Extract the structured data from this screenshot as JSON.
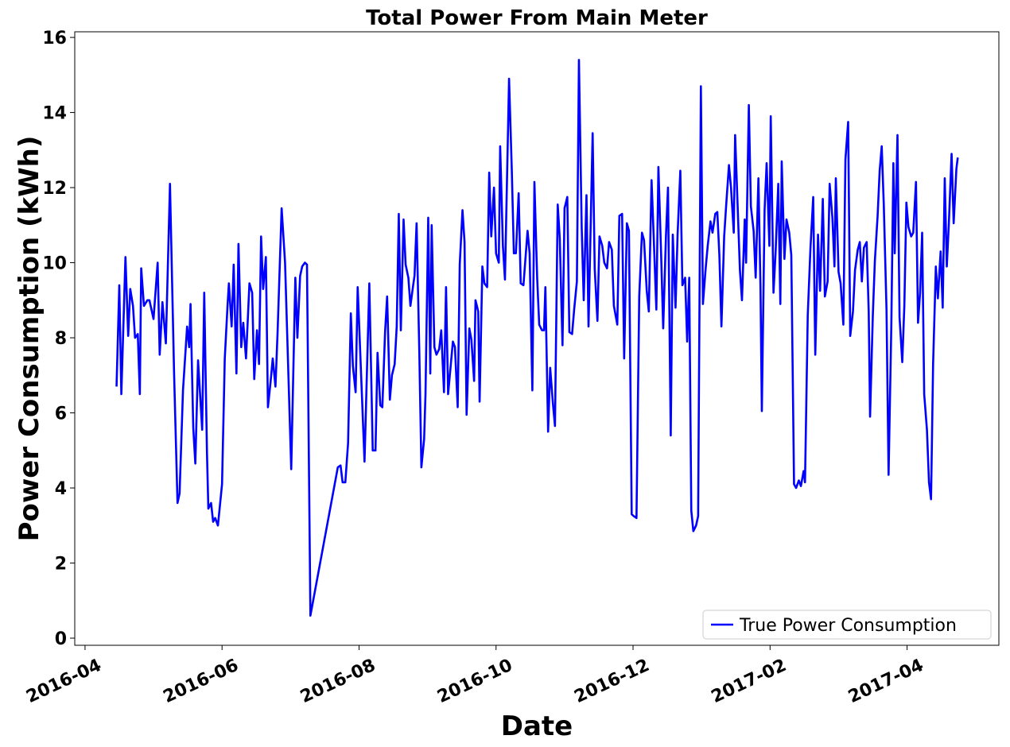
{
  "chart_data": {
    "type": "line",
    "title": "Total Power From Main Meter",
    "x_label": "Date",
    "y_label": "Power Consumption (kWh)",
    "x": [
      0.46,
      0.5,
      0.53,
      0.59,
      0.63,
      0.66,
      0.7,
      0.73,
      0.77,
      0.8,
      0.82,
      0.86,
      0.91,
      0.94,
      1.0,
      1.06,
      1.09,
      1.13,
      1.18,
      1.24,
      1.3,
      1.35,
      1.38,
      1.43,
      1.49,
      1.52,
      1.54,
      1.58,
      1.61,
      1.65,
      1.71,
      1.74,
      1.78,
      1.8,
      1.84,
      1.87,
      1.9,
      1.94,
      2.0,
      2.04,
      2.08,
      2.1,
      2.14,
      2.17,
      2.21,
      2.24,
      2.28,
      2.31,
      2.35,
      2.4,
      2.44,
      2.47,
      2.51,
      2.54,
      2.57,
      2.6,
      2.64,
      2.67,
      2.71,
      2.74,
      2.78,
      2.81,
      2.87,
      2.92,
      3.01,
      3.07,
      3.1,
      3.14,
      3.17,
      3.21,
      3.24,
      3.29,
      3.69,
      3.73,
      3.76,
      3.8,
      3.84,
      3.88,
      3.91,
      3.95,
      3.98,
      4.08,
      4.15,
      4.2,
      4.24,
      4.27,
      4.31,
      4.34,
      4.38,
      4.41,
      4.45,
      4.48,
      4.52,
      4.55,
      4.58,
      4.61,
      4.65,
      4.68,
      4.72,
      4.75,
      4.79,
      4.81,
      4.84,
      4.88,
      4.91,
      4.95,
      4.97,
      5.01,
      5.04,
      5.06,
      5.1,
      5.13,
      5.17,
      5.2,
      5.24,
      5.27,
      5.3,
      5.33,
      5.37,
      5.4,
      5.44,
      5.47,
      5.51,
      5.54,
      5.57,
      5.61,
      5.64,
      5.68,
      5.7,
      5.74,
      5.76,
      5.8,
      5.83,
      5.87,
      5.9,
      5.93,
      5.97,
      6.0,
      6.04,
      6.06,
      6.1,
      6.13,
      6.19,
      6.23,
      6.26,
      6.29,
      6.33,
      6.36,
      6.4,
      6.46,
      6.49,
      6.53,
      6.56,
      6.6,
      6.63,
      6.67,
      6.7,
      6.72,
      6.76,
      6.79,
      6.83,
      6.86,
      6.9,
      6.93,
      6.97,
      7.0,
      7.04,
      7.07,
      7.11,
      7.14,
      7.18,
      7.21,
      7.25,
      7.28,
      7.32,
      7.35,
      7.41,
      7.44,
      7.48,
      7.51,
      7.55,
      7.58,
      7.62,
      7.65,
      7.69,
      7.72,
      7.77,
      7.8,
      7.84,
      7.87,
      7.91,
      7.94,
      7.98,
      8.01,
      8.05,
      8.09,
      8.13,
      8.16,
      8.2,
      8.23,
      8.27,
      8.3,
      8.34,
      8.37,
      8.41,
      8.44,
      8.48,
      8.51,
      8.55,
      8.58,
      8.62,
      8.65,
      8.69,
      8.72,
      8.76,
      8.79,
      8.82,
      8.85,
      8.88,
      8.92,
      8.95,
      8.99,
      9.02,
      9.06,
      9.09,
      9.13,
      9.16,
      9.2,
      9.23,
      9.26,
      9.29,
      9.33,
      9.36,
      9.4,
      9.43,
      9.47,
      9.49,
      9.52,
      9.56,
      9.59,
      9.63,
      9.65,
      9.69,
      9.72,
      9.76,
      9.79,
      9.83,
      9.86,
      9.88,
      9.92,
      9.95,
      9.99,
      10.01,
      10.05,
      10.08,
      10.12,
      10.15,
      10.17,
      10.21,
      10.24,
      10.28,
      10.31,
      10.35,
      10.38,
      10.42,
      10.45,
      10.49,
      10.51,
      10.55,
      10.59,
      10.63,
      10.66,
      10.7,
      10.73,
      10.77,
      10.8,
      10.84,
      10.87,
      10.91,
      10.94,
      10.96,
      11.0,
      11.03,
      11.07,
      11.1,
      11.14,
      11.17,
      11.21,
      11.24,
      11.28,
      11.31,
      11.34,
      11.37,
      11.41,
      11.44,
      11.46,
      11.5,
      11.53,
      11.57,
      11.6,
      11.63,
      11.66,
      11.7,
      11.73,
      11.77,
      11.8,
      11.82,
      11.86,
      11.89,
      11.93,
      11.96,
      11.99,
      12.02,
      12.06,
      12.09,
      12.13,
      12.16,
      12.19,
      12.22,
      12.25,
      12.29,
      12.32,
      12.35,
      12.38,
      12.42,
      12.45,
      12.49,
      12.52,
      12.55,
      12.58,
      12.61,
      12.65,
      12.68,
      12.72,
      12.74
    ],
    "series": [
      {
        "name": "True Power Consumption",
        "color": "#0000ff",
        "values": [
          6.7,
          9.4,
          6.5,
          10.15,
          8.05,
          9.3,
          8.85,
          8.0,
          8.1,
          6.5,
          9.85,
          8.85,
          9.0,
          9.0,
          8.5,
          10.0,
          7.55,
          8.95,
          7.85,
          12.1,
          7.05,
          3.6,
          3.85,
          6.6,
          8.3,
          7.75,
          8.9,
          5.6,
          4.65,
          7.4,
          5.55,
          9.2,
          4.95,
          3.45,
          3.6,
          3.1,
          3.2,
          3.0,
          4.1,
          7.45,
          8.85,
          9.45,
          8.3,
          9.95,
          7.05,
          10.5,
          7.75,
          8.4,
          7.45,
          9.45,
          9.2,
          6.9,
          8.2,
          7.3,
          10.7,
          9.3,
          10.15,
          6.15,
          6.85,
          7.45,
          6.7,
          8.1,
          11.45,
          10.0,
          4.5,
          9.6,
          8.0,
          9.65,
          9.9,
          10.0,
          9.95,
          0.6,
          4.55,
          4.6,
          4.15,
          4.15,
          5.2,
          8.65,
          7.25,
          6.55,
          9.35,
          4.7,
          9.45,
          5.0,
          5.0,
          7.6,
          6.2,
          6.15,
          8.15,
          9.1,
          6.35,
          7.0,
          7.3,
          8.3,
          11.3,
          8.2,
          11.15,
          9.95,
          9.6,
          8.85,
          9.4,
          9.65,
          11.05,
          7.6,
          4.55,
          5.3,
          6.5,
          11.2,
          7.05,
          11.0,
          7.75,
          7.55,
          7.7,
          8.2,
          6.55,
          9.35,
          6.5,
          7.1,
          7.9,
          7.75,
          6.15,
          9.95,
          11.4,
          10.55,
          5.95,
          8.25,
          7.95,
          6.85,
          9.0,
          8.7,
          6.3,
          9.9,
          9.45,
          9.35,
          12.4,
          10.7,
          12.0,
          10.25,
          10.0,
          13.1,
          10.45,
          9.55,
          14.9,
          12.45,
          10.25,
          10.25,
          11.85,
          9.45,
          9.4,
          10.85,
          10.25,
          6.6,
          12.15,
          9.6,
          8.35,
          8.2,
          8.2,
          9.35,
          5.5,
          7.2,
          6.25,
          5.65,
          11.55,
          10.65,
          7.8,
          11.45,
          11.75,
          8.15,
          8.1,
          8.75,
          9.5,
          15.4,
          10.95,
          9.0,
          11.8,
          8.3,
          13.45,
          9.85,
          8.45,
          10.7,
          10.45,
          10.0,
          9.85,
          10.55,
          10.35,
          8.85,
          8.35,
          11.25,
          11.3,
          7.45,
          11.05,
          10.85,
          3.3,
          3.25,
          3.2,
          9.1,
          10.8,
          10.6,
          9.25,
          8.7,
          12.2,
          10.75,
          8.75,
          12.55,
          10.2,
          8.25,
          10.7,
          12.0,
          5.4,
          10.75,
          8.8,
          10.75,
          12.45,
          9.4,
          9.6,
          7.9,
          9.6,
          3.4,
          2.85,
          3.0,
          3.25,
          14.7,
          8.9,
          9.85,
          10.45,
          11.1,
          10.8,
          11.3,
          11.35,
          10.2,
          8.3,
          10.7,
          11.55,
          12.6,
          12.0,
          10.8,
          13.4,
          11.85,
          9.8,
          9.0,
          11.15,
          10.0,
          14.2,
          11.5,
          10.85,
          9.6,
          12.25,
          9.35,
          6.05,
          11.4,
          12.65,
          10.45,
          13.9,
          9.2,
          10.25,
          12.1,
          8.9,
          12.7,
          10.1,
          11.15,
          10.8,
          10.2,
          4.1,
          4.0,
          4.2,
          4.05,
          4.45,
          4.15,
          8.6,
          10.4,
          11.75,
          7.55,
          10.75,
          9.25,
          11.7,
          9.1,
          9.5,
          12.1,
          11.2,
          9.9,
          12.25,
          9.75,
          9.45,
          8.35,
          12.75,
          13.75,
          8.05,
          8.7,
          9.8,
          10.35,
          10.55,
          9.5,
          10.4,
          10.55,
          8.7,
          5.9,
          8.6,
          10.05,
          11.25,
          12.45,
          13.1,
          11.55,
          8.75,
          4.35,
          8.3,
          12.65,
          10.25,
          13.4,
          8.55,
          7.35,
          8.85,
          11.6,
          10.95,
          10.7,
          10.8,
          12.15,
          8.4,
          9.2,
          10.8,
          6.5,
          5.55,
          4.15,
          3.7,
          7.3,
          9.9,
          9.05,
          10.3,
          8.8,
          12.25,
          9.9,
          11.05,
          12.9,
          11.05,
          12.5,
          12.8
        ]
      }
    ],
    "xlim": [
      -0.15,
      13.34
    ],
    "xticks": [
      {
        "value": 0,
        "label": "2016-04"
      },
      {
        "value": 2,
        "label": "2016-06"
      },
      {
        "value": 4,
        "label": "2016-08"
      },
      {
        "value": 6,
        "label": "2016-10"
      },
      {
        "value": 8,
        "label": "2016-12"
      },
      {
        "value": 10,
        "label": "2017-02"
      },
      {
        "value": 12,
        "label": "2017-04"
      }
    ],
    "ylim": [
      -0.19,
      16.15
    ],
    "yticks": [
      0,
      2,
      4,
      6,
      8,
      10,
      12,
      14,
      16
    ],
    "legend": "lower right",
    "grid": false
  }
}
